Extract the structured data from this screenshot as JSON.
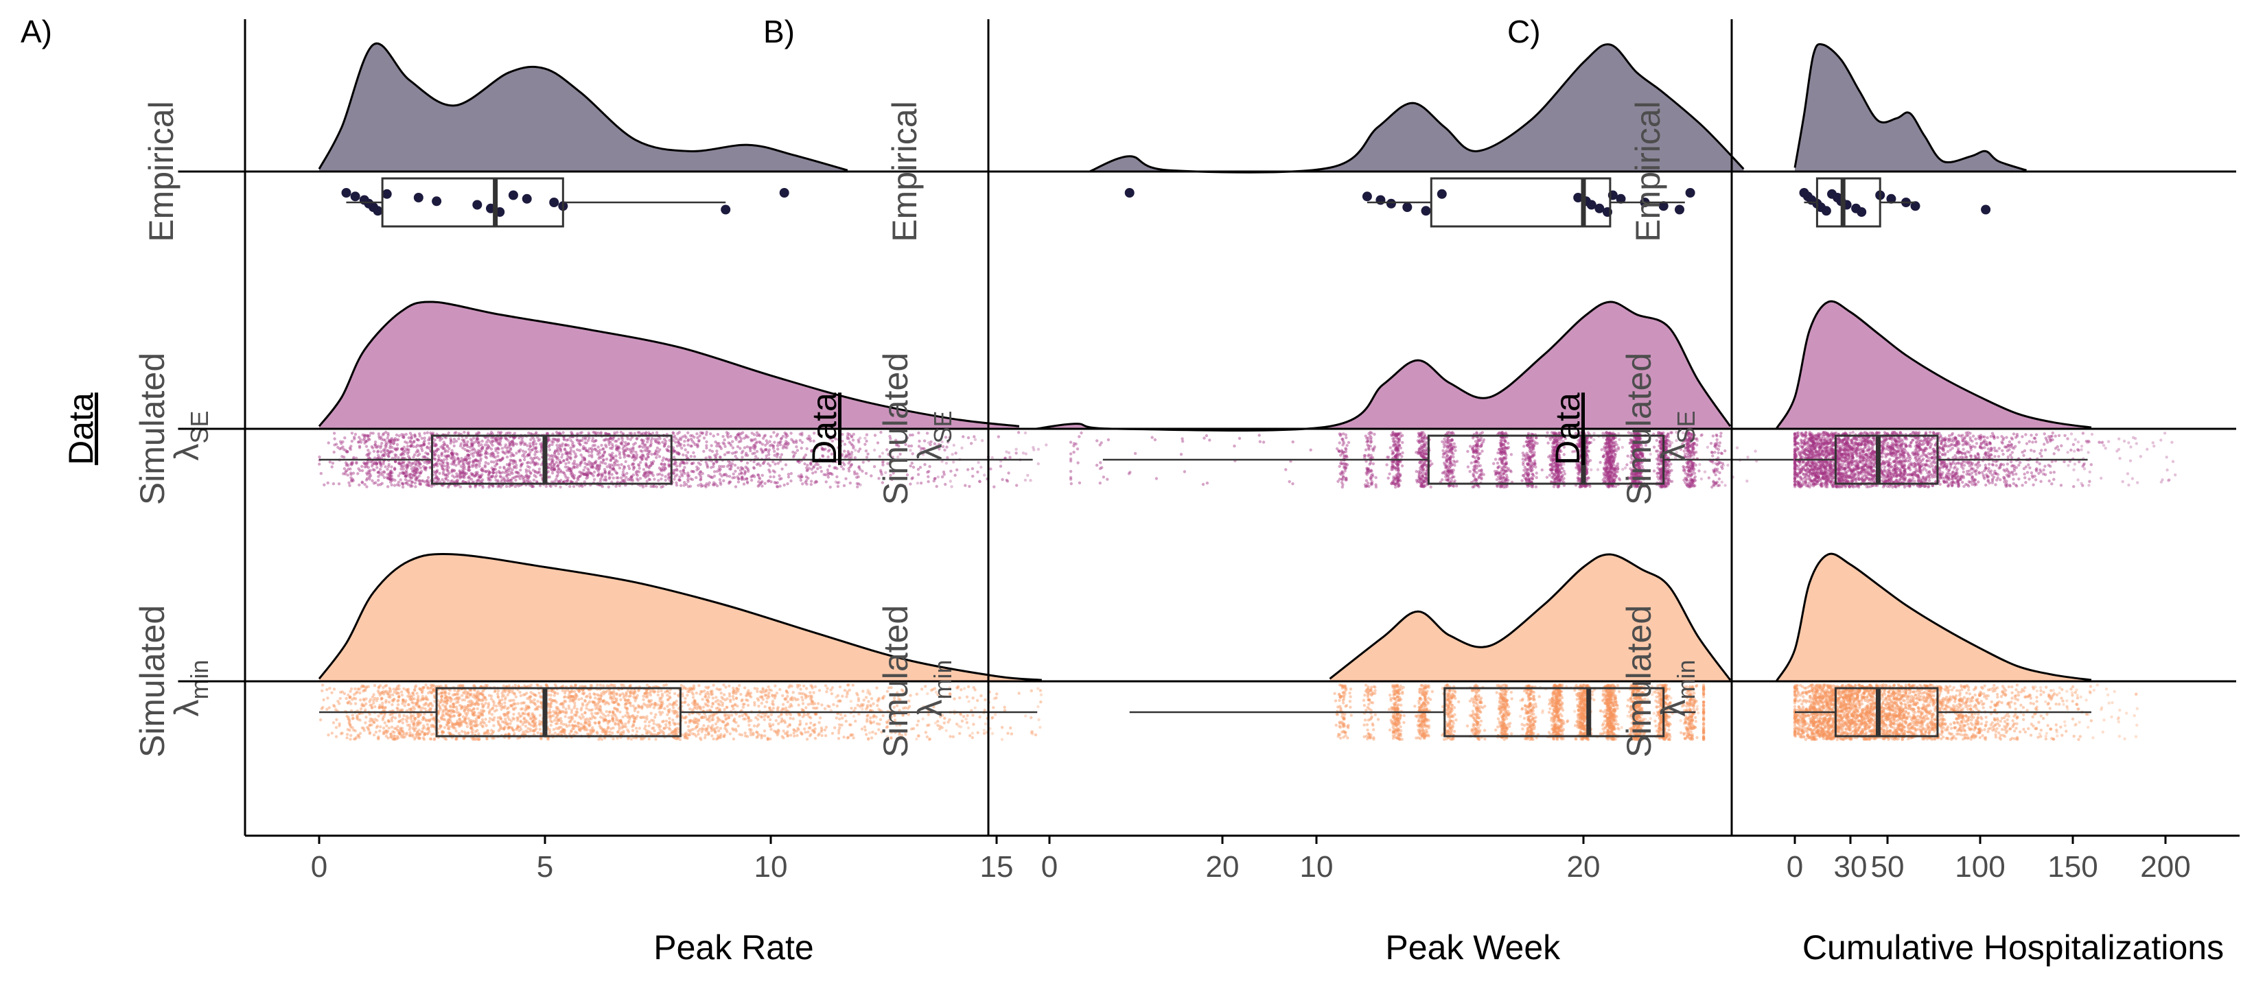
{
  "chart_data": [
    {
      "panel_label": "A)",
      "type": "raincloud",
      "xlabel": "Peak Rate",
      "ylabel": "Data",
      "xlim": [
        -3.2,
        20
      ],
      "xticks": [
        0,
        5,
        10,
        15,
        20
      ],
      "groups": [
        {
          "label": "Empirical",
          "color": "#8b8599",
          "point_color": "#1c1a3d",
          "density": [
            [
              0.0,
              0.02
            ],
            [
              0.5,
              0.35
            ],
            [
              1.2,
              1.0
            ],
            [
              2.0,
              0.72
            ],
            [
              3.0,
              0.52
            ],
            [
              4.2,
              0.78
            ],
            [
              5.0,
              0.81
            ],
            [
              5.8,
              0.62
            ],
            [
              7.0,
              0.25
            ],
            [
              8.2,
              0.16
            ],
            [
              9.5,
              0.21
            ],
            [
              10.5,
              0.13
            ],
            [
              11.7,
              0.01
            ]
          ],
          "box": {
            "min": 0.6,
            "q1": 1.4,
            "median": 3.9,
            "q3": 5.4,
            "max": 9.0
          },
          "points": [
            0.6,
            0.8,
            1.0,
            1.1,
            1.2,
            1.3,
            1.5,
            2.2,
            2.6,
            3.5,
            3.8,
            4.0,
            4.3,
            4.6,
            5.2,
            5.4,
            9.0,
            10.3
          ]
        },
        {
          "label": "Simulated λSE",
          "label_main": "Simulated",
          "label_symbol": "λ",
          "label_sub": "SE",
          "color": "#cc94bd",
          "point_color": "#a43586",
          "density": [
            [
              0.0,
              0.02
            ],
            [
              0.5,
              0.25
            ],
            [
              1.0,
              0.62
            ],
            [
              1.8,
              0.92
            ],
            [
              2.5,
              1.0
            ],
            [
              4.0,
              0.9
            ],
            [
              6.0,
              0.78
            ],
            [
              8.0,
              0.64
            ],
            [
              10.0,
              0.42
            ],
            [
              12.0,
              0.22
            ],
            [
              14.0,
              0.08
            ],
            [
              15.5,
              0.02
            ]
          ],
          "box": {
            "min": 0.0,
            "q1": 2.5,
            "median": 5.0,
            "q3": 7.8,
            "max": 15.8
          },
          "points_range": [
            0.0,
            16.2
          ]
        },
        {
          "label": "Simulated λmin",
          "label_main": "Simulated",
          "label_symbol": "λ",
          "label_sub": "min",
          "color": "#fcc9aa",
          "point_color": "#f7955e",
          "density": [
            [
              0.0,
              0.02
            ],
            [
              0.6,
              0.3
            ],
            [
              1.2,
              0.7
            ],
            [
              2.0,
              0.95
            ],
            [
              3.0,
              1.0
            ],
            [
              5.0,
              0.9
            ],
            [
              7.0,
              0.78
            ],
            [
              9.0,
              0.6
            ],
            [
              11.0,
              0.38
            ],
            [
              13.0,
              0.17
            ],
            [
              15.0,
              0.04
            ],
            [
              16.0,
              0.01
            ]
          ],
          "box": {
            "min": 0.0,
            "q1": 2.6,
            "median": 5.0,
            "q3": 8.0,
            "max": 15.9
          },
          "points_range": [
            0.0,
            16.0
          ]
        }
      ]
    },
    {
      "panel_label": "B)",
      "type": "raincloud",
      "xlabel": "Peak Week",
      "ylabel": "Data",
      "xlim": [
        -3.5,
        34
      ],
      "xticks": [
        0,
        10,
        20,
        30
      ],
      "groups": [
        {
          "label": "Empirical",
          "color": "#8b8599",
          "point_color": "#1c1a3d",
          "density": [
            [
              1.5,
              0.0
            ],
            [
              3.0,
              0.12
            ],
            [
              4.5,
              0.01
            ],
            [
              10.5,
              0.03
            ],
            [
              12.3,
              0.35
            ],
            [
              13.6,
              0.54
            ],
            [
              14.8,
              0.35
            ],
            [
              16.0,
              0.16
            ],
            [
              18.0,
              0.4
            ],
            [
              20.0,
              0.86
            ],
            [
              21.0,
              1.0
            ],
            [
              22.0,
              0.78
            ],
            [
              23.0,
              0.62
            ],
            [
              24.5,
              0.35
            ],
            [
              26.0,
              0.02
            ]
          ],
          "box": {
            "min": 11.9,
            "q1": 14.3,
            "median": 20.0,
            "q3": 21.0,
            "max": 23.8
          },
          "points": [
            3.0,
            11.9,
            12.4,
            12.8,
            13.4,
            14.1,
            14.7,
            19.8,
            20.1,
            20.3,
            20.6,
            20.9,
            21.1,
            21.4,
            22.3,
            23.0,
            23.6,
            24.0
          ]
        },
        {
          "label": "Simulated λSE",
          "label_main": "Simulated",
          "label_symbol": "λ",
          "label_sub": "SE",
          "color": "#cc94bd",
          "point_color": "#a43586",
          "density": [
            [
              -0.5,
              0.0
            ],
            [
              1.0,
              0.04
            ],
            [
              2.5,
              0.0
            ],
            [
              10.5,
              0.02
            ],
            [
              12.5,
              0.35
            ],
            [
              13.8,
              0.54
            ],
            [
              15.0,
              0.36
            ],
            [
              16.5,
              0.25
            ],
            [
              18.5,
              0.58
            ],
            [
              20.0,
              0.88
            ],
            [
              21.0,
              1.0
            ],
            [
              22.0,
              0.9
            ],
            [
              23.2,
              0.8
            ],
            [
              24.3,
              0.38
            ],
            [
              25.5,
              0.02
            ]
          ],
          "box": {
            "min": 2.0,
            "q1": 14.2,
            "median": 20.0,
            "q3": 23.0,
            "max": 28.8
          },
          "points_range": [
            0.8,
            26.5
          ]
        },
        {
          "label": "Simulated λmin",
          "label_main": "Simulated",
          "label_symbol": "λ",
          "label_sub": "min",
          "color": "#fcc9aa",
          "point_color": "#f7955e",
          "density": [
            [
              10.5,
              0.02
            ],
            [
              12.5,
              0.35
            ],
            [
              13.8,
              0.55
            ],
            [
              15.0,
              0.36
            ],
            [
              16.5,
              0.28
            ],
            [
              18.5,
              0.6
            ],
            [
              20.0,
              0.9
            ],
            [
              21.0,
              1.0
            ],
            [
              22.2,
              0.88
            ],
            [
              23.2,
              0.75
            ],
            [
              24.3,
              0.35
            ],
            [
              25.5,
              0.01
            ]
          ],
          "box": {
            "min": 3.0,
            "q1": 14.8,
            "median": 20.2,
            "q3": 23.0,
            "max": 24.2
          },
          "points_range": [
            1.0,
            24.5
          ]
        }
      ]
    },
    {
      "panel_label": "C)",
      "type": "raincloud",
      "xlabel": "Cumulative Hospitalizations",
      "ylabel": "Data",
      "xlim": [
        -35,
        240
      ],
      "xticks": [
        0,
        50,
        100,
        150,
        200
      ],
      "groups": [
        {
          "label": "Empirical",
          "color": "#8b8599",
          "point_color": "#1c1a3d",
          "density": [
            [
              0.0,
              0.03
            ],
            [
              5.0,
              0.45
            ],
            [
              10.0,
              0.92
            ],
            [
              15.0,
              1.0
            ],
            [
              25.0,
              0.88
            ],
            [
              35.0,
              0.63
            ],
            [
              45.0,
              0.4
            ],
            [
              55.0,
              0.42
            ],
            [
              62.0,
              0.46
            ],
            [
              70.0,
              0.28
            ],
            [
              80.0,
              0.08
            ],
            [
              95.0,
              0.12
            ],
            [
              103.0,
              0.16
            ],
            [
              110.0,
              0.08
            ],
            [
              125.0,
              0.01
            ]
          ],
          "box": {
            "min": 5.0,
            "q1": 12.0,
            "median": 26.0,
            "q3": 46.0,
            "max": 65.0
          },
          "points": [
            5.0,
            7.0,
            9.0,
            12.0,
            14.0,
            17.0,
            20.0,
            23.0,
            25.0,
            28.0,
            33.0,
            36.0,
            46.0,
            52.0,
            60.0,
            65.0,
            103.0
          ]
        },
        {
          "label": "Simulated λSE",
          "label_main": "Simulated",
          "label_symbol": "λ",
          "label_sub": "SE",
          "color": "#cc94bd",
          "point_color": "#a43586",
          "density": [
            [
              -10.0,
              0.0
            ],
            [
              0.0,
              0.25
            ],
            [
              8.0,
              0.78
            ],
            [
              18.0,
              1.0
            ],
            [
              30.0,
              0.92
            ],
            [
              45.0,
              0.75
            ],
            [
              60.0,
              0.58
            ],
            [
              80.0,
              0.4
            ],
            [
              100.0,
              0.25
            ],
            [
              120.0,
              0.12
            ],
            [
              140.0,
              0.05
            ],
            [
              160.0,
              0.01
            ]
          ],
          "box": {
            "min": 0.0,
            "q1": 22.0,
            "median": 45.0,
            "q3": 77.0,
            "max": 158.0
          },
          "points_range": [
            0.0,
            210.0
          ]
        },
        {
          "label": "Simulated λmin",
          "label_main": "Simulated",
          "label_symbol": "λ",
          "label_sub": "min",
          "color": "#fcc9aa",
          "point_color": "#f7955e",
          "density": [
            [
              -10.0,
              0.0
            ],
            [
              0.0,
              0.25
            ],
            [
              8.0,
              0.78
            ],
            [
              18.0,
              1.0
            ],
            [
              30.0,
              0.92
            ],
            [
              45.0,
              0.76
            ],
            [
              60.0,
              0.6
            ],
            [
              80.0,
              0.42
            ],
            [
              100.0,
              0.26
            ],
            [
              120.0,
              0.12
            ],
            [
              140.0,
              0.05
            ],
            [
              160.0,
              0.01
            ]
          ],
          "box": {
            "min": 0.0,
            "q1": 22.0,
            "median": 45.0,
            "q3": 77.0,
            "max": 160.0
          },
          "points_range": [
            0.0,
            185.0
          ]
        }
      ]
    }
  ]
}
